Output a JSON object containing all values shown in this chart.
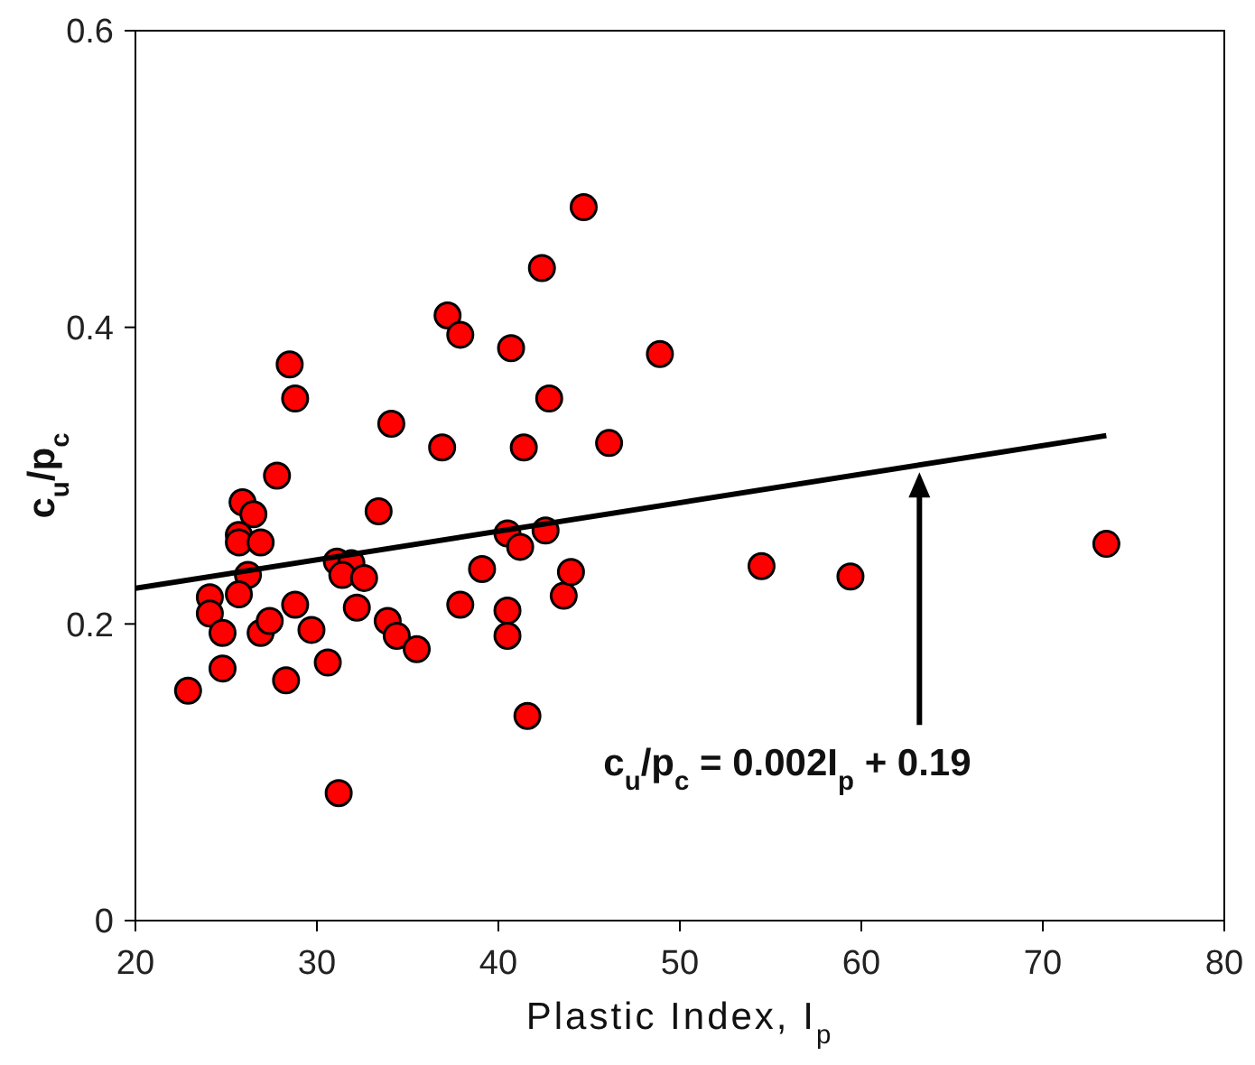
{
  "chart_data": {
    "type": "scatter",
    "xlabel": "Plastic Index, I$_{p}$",
    "ylabel": "c$_{u}$/p$_{c}$",
    "xlim": [
      20,
      80
    ],
    "xticks": [
      20,
      30,
      40,
      50,
      60,
      70,
      80
    ],
    "ylim": [
      0,
      0.6
    ],
    "yticks": [
      0,
      0.2,
      0.4,
      0.6
    ],
    "marker": "circle",
    "series": [
      {
        "color": "#ff0000",
        "x": [
          22.9,
          24.1,
          24.1,
          24.8,
          24.8,
          25.9,
          26.5,
          25.7,
          25.7,
          26.9,
          26.2,
          25.7,
          26.9,
          27.4,
          27.8,
          28.5,
          28.8,
          28.8,
          28.3,
          29.7,
          30.6,
          31.1,
          31.9,
          31.4,
          32.6,
          32.2,
          31.2,
          33.4,
          34.1,
          33.9,
          34.4,
          35.5,
          36.9,
          37.2,
          37.9,
          37.9,
          39.1,
          40.7,
          40.5,
          40.5,
          40.5,
          41.2,
          41.4,
          41.6,
          42.4,
          42.6,
          42.8,
          43.6,
          44.0,
          44.7,
          46.1,
          48.9,
          54.5,
          59.4,
          73.5
        ],
        "values": [
          0.155,
          0.218,
          0.207,
          0.194,
          0.17,
          0.282,
          0.274,
          0.26,
          0.255,
          0.255,
          0.233,
          0.22,
          0.194,
          0.202,
          0.3,
          0.375,
          0.352,
          0.213,
          0.162,
          0.196,
          0.174,
          0.242,
          0.241,
          0.233,
          0.231,
          0.211,
          0.086,
          0.276,
          0.335,
          0.202,
          0.192,
          0.183,
          0.319,
          0.408,
          0.395,
          0.213,
          0.237,
          0.386,
          0.261,
          0.209,
          0.192,
          0.252,
          0.319,
          0.138,
          0.44,
          0.263,
          0.352,
          0.219,
          0.235,
          0.481,
          0.322,
          0.382,
          0.239,
          0.232,
          0.254
        ]
      },
      {
        "type": "line",
        "color": "#000000",
        "marker": "none",
        "x": [
          20,
          73.5
        ],
        "values": [
          0.224,
          0.327
        ]
      }
    ],
    "annotations": [
      "c$_{u}$/p$_{c}$ = 0.002I$_{p}$ + 0.19"
    ]
  }
}
